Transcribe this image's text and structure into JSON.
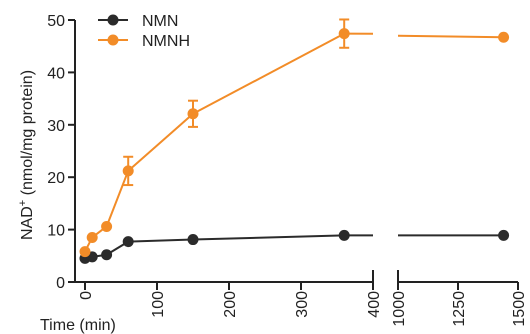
{
  "chart_data": {
    "type": "line",
    "xlabel": "Time (min)",
    "ylabel_prefix": "NAD",
    "ylabel_sup": "+",
    "ylabel_suffix": " (nmol/mg protein)",
    "ylim": [
      0,
      50
    ],
    "y_ticks": [
      0,
      10,
      20,
      30,
      40,
      50
    ],
    "x_segments": [
      {
        "range": [
          0,
          400
        ],
        "ticks": [
          0,
          100,
          200,
          300,
          400
        ]
      },
      {
        "range": [
          1000,
          1500
        ],
        "ticks": [
          1000,
          1250,
          1500
        ]
      }
    ],
    "legend_position": "top-left",
    "series": [
      {
        "name": "NMN",
        "color": "#2b2b2b",
        "points": [
          {
            "x": 0,
            "y": 4.5,
            "err": 0
          },
          {
            "x": 10,
            "y": 4.8,
            "err": 0
          },
          {
            "x": 30,
            "y": 5.2,
            "err": 0
          },
          {
            "x": 60,
            "y": 7.7,
            "err": 0
          },
          {
            "x": 150,
            "y": 8.1,
            "err": 0
          },
          {
            "x": 360,
            "y": 8.9,
            "err": 0
          },
          {
            "x": 1440,
            "y": 8.9,
            "err": 0
          }
        ]
      },
      {
        "name": "NMNH",
        "color": "#f28c28",
        "points": [
          {
            "x": 0,
            "y": 5.8,
            "err": 0
          },
          {
            "x": 10,
            "y": 8.5,
            "err": 0
          },
          {
            "x": 30,
            "y": 10.6,
            "err": 0
          },
          {
            "x": 60,
            "y": 21.2,
            "err": 2.7
          },
          {
            "x": 150,
            "y": 32.1,
            "err": 2.5
          },
          {
            "x": 360,
            "y": 47.4,
            "err": 2.7
          },
          {
            "x": 1440,
            "y": 46.7,
            "err": 0
          }
        ]
      }
    ]
  }
}
